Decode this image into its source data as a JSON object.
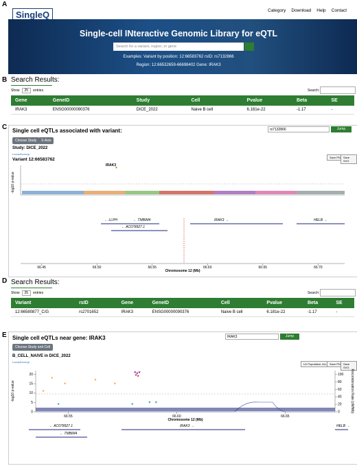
{
  "header": {
    "logo": "SingleQ",
    "nav": [
      "Category",
      "Download",
      "Help",
      "Contact"
    ],
    "title": "Single-cell INteractive Genomic Library for eQTL",
    "search_placeholder": "Search for a variant, region, or gene",
    "examples_line1": "Examples: Variant by position: 12:66583762  rsID: rs7132866",
    "examples_line2": "Region: 12:66532659-66698402  Gene: IRAK3"
  },
  "panel_labels": [
    "A",
    "B",
    "C",
    "D",
    "E"
  ],
  "search_b": {
    "title": "Search Results:",
    "show": "Show",
    "entries_count": "25",
    "entries": "entries",
    "search_label": "Search:",
    "columns": [
      "Gene",
      "GeneID",
      "Study",
      "Cell",
      "Pvalue",
      "Beta",
      "SE"
    ],
    "rows": [
      [
        "IRAK3",
        "ENSG00000090376",
        "DICE_2022",
        "Naive B cell",
        "6.181e-22",
        "-1.17",
        "-"
      ]
    ]
  },
  "panel_c": {
    "title": "Single cell eQTLs associated with variant:",
    "input": "rs7132866",
    "jump": "Jump",
    "buttons": [
      "Choose Study",
      "X-Axis"
    ],
    "study": "Study: DICE_2022",
    "locuszoom": "LocusZoom.js",
    "variant": "Variant 12:66583762",
    "save": [
      "Save PNG",
      "Save SVG"
    ],
    "y_label": "-log10 p-value",
    "lead_label": "IRAK3",
    "x_label": "Chromosome 12 (Mb)",
    "xlim": [
      66.431,
      66.724
    ],
    "xticks": [
      66.45,
      {
        "value": 66.5,
        "label": "66.50"
      },
      66.55,
      {
        "value": 66.6,
        "label": "66.60"
      },
      66.65,
      {
        "value": 66.7,
        "label": "66.70"
      }
    ],
    "genes": [
      "← LLPH",
      "← TMBIM4",
      "← AC078927.1",
      "IRAK3 →",
      "HELB →"
    ]
  },
  "search_d": {
    "title": "Search Results:",
    "show": "Show",
    "entries_count": "25",
    "entries": "entries",
    "search_label": "Search:",
    "columns": [
      "Variant",
      "rsID",
      "Gene",
      "GeneID",
      "Cell",
      "Pvalue",
      "Beta",
      "SE"
    ],
    "rows": [
      [
        "12:66580877_C/G",
        "rs2701652",
        "IRAK3",
        "ENSG00000090376",
        "Naive B cell",
        "6.181e-22",
        "-1.17",
        "-"
      ]
    ]
  },
  "panel_e": {
    "title": "Single cell eQTLs near gene: IRAK3",
    "input": "IRAK3",
    "jump": "Jump",
    "button": "Choose Study and Cell",
    "subtitle": "B_CELL_NAIVE in DICE_2022",
    "locuszoom": "LocusZoom.js",
    "controls": [
      "LD Population: ALL",
      "Save PNG",
      "Save SVG"
    ],
    "chart_data": {
      "type": "scatter",
      "y_label": "-log10 p-value",
      "y2_label": "Recombination Rate (cM/Mb)",
      "x_label": "Chromosome 12 (Mb)",
      "xlim": [
        66.535,
        66.673
      ],
      "xticks": [
        66.55,
        {
          "value": 66.6,
          "label": "66.60"
        },
        66.65
      ],
      "ylim": [
        0,
        22
      ],
      "yticks": [
        0,
        5,
        10,
        15,
        20
      ],
      "y2lim": [
        0,
        110
      ],
      "y2ticks": [
        0,
        20,
        40,
        60,
        80,
        100
      ],
      "series": [
        {
          "name": "lead",
          "color": "#7b1fa2",
          "x": [
            66.5808,
            66.5818,
            66.5828
          ],
          "values": [
            21,
            20.5,
            21
          ]
        },
        {
          "name": "high",
          "color": "#d32f2f",
          "x": [
            66.5812,
            66.5822
          ],
          "values": [
            19.5,
            19
          ]
        },
        {
          "name": "mid",
          "color": "#f9a825",
          "x": [
            66.5425,
            66.5485,
            66.5625,
            66.5715,
            66.5385
          ],
          "values": [
            18,
            15,
            17,
            15,
            11
          ]
        },
        {
          "name": "low",
          "color": "#26a69a",
          "x": [
            66.5455,
            66.5795,
            66.5905,
            66.5875
          ],
          "values": [
            4,
            4,
            5,
            5
          ]
        }
      ]
    },
    "genes": [
      "← AC078927.1",
      "← TMBIM4",
      "IRAK3 →",
      "HELB →"
    ]
  }
}
